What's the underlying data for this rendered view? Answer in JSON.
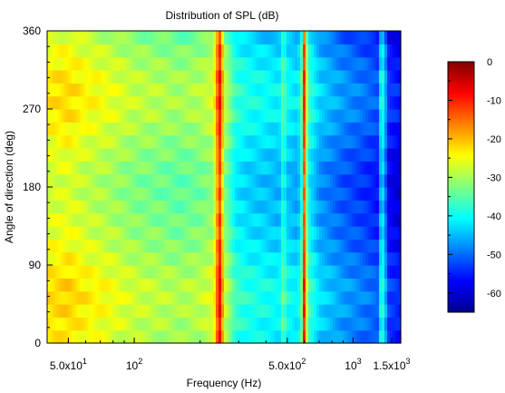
{
  "chart_data": {
    "type": "heatmap",
    "title": "Distribution of SPL (dB)",
    "xlabel": "Frequency (Hz)",
    "ylabel": "Angle of direction (deg)",
    "x_scale": "log",
    "xlim": [
      40,
      1650
    ],
    "ylim": [
      0,
      360
    ],
    "x_ticks": [
      {
        "value": 50,
        "base": "5.0x10",
        "exp": "1"
      },
      {
        "value": 100,
        "base": "10",
        "exp": "2"
      },
      {
        "value": 500,
        "base": "5.0x10",
        "exp": "2"
      },
      {
        "value": 1000,
        "base": "10",
        "exp": "3"
      },
      {
        "value": 1500,
        "base": "1.5x10",
        "exp": "3"
      }
    ],
    "y_ticks": [
      {
        "value": 0,
        "label": "0"
      },
      {
        "value": 90,
        "label": "90"
      },
      {
        "value": 180,
        "label": "180"
      },
      {
        "value": 270,
        "label": "270"
      },
      {
        "value": 360,
        "label": "360"
      }
    ],
    "colorbar": {
      "min": -65,
      "max": 0,
      "colormap": "jet",
      "ticks": [
        {
          "value": 0,
          "label": "0"
        },
        {
          "value": -10,
          "label": "-10"
        },
        {
          "value": -20,
          "label": "-20"
        },
        {
          "value": -30,
          "label": "-30"
        },
        {
          "value": -40,
          "label": "-40"
        },
        {
          "value": -50,
          "label": "-50"
        },
        {
          "value": -60,
          "label": "-60"
        }
      ]
    },
    "angles_deg": [
      0,
      30,
      60,
      90,
      120,
      150,
      180,
      210,
      240,
      270,
      300,
      330,
      360
    ],
    "frequency_profile": {
      "frequencies_hz": [
        40,
        50,
        60,
        70,
        80,
        100,
        130,
        160,
        200,
        230,
        245,
        260,
        290,
        330,
        400,
        460,
        480,
        500,
        560,
        590,
        600,
        620,
        700,
        900,
        1100,
        1300,
        1350,
        1450,
        1650
      ],
      "spl_db": [
        -22,
        -21,
        -23,
        -24,
        -25,
        -27,
        -28,
        -29,
        -28,
        -26,
        -6,
        -27,
        -36,
        -38,
        -39,
        -40,
        -33,
        -39,
        -41,
        -30,
        -3,
        -35,
        -42,
        -46,
        -48,
        -50,
        -35,
        -52,
        -54
      ]
    },
    "angle_offsets_db": [
      -2,
      -1,
      0,
      -2,
      -4,
      -5,
      -6,
      -5,
      -3,
      -1,
      -1,
      -3,
      -6
    ]
  }
}
